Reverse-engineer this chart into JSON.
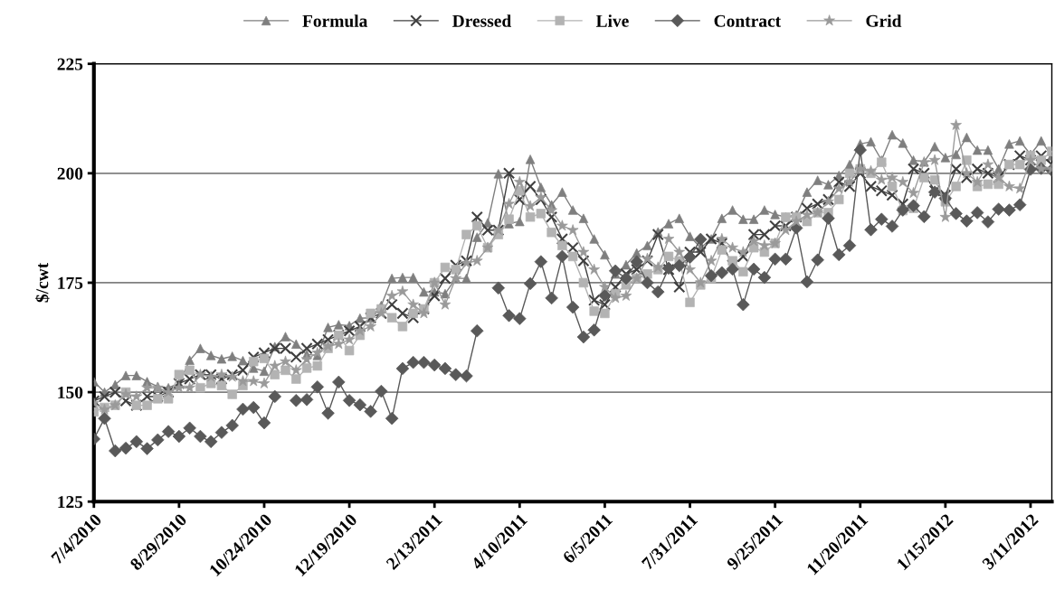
{
  "chart_data": {
    "type": "line",
    "ylabel": "$/cwt",
    "x": [
      "2010-07-04",
      "2010-07-11",
      "2010-07-18",
      "2010-07-25",
      "2010-08-01",
      "2010-08-08",
      "2010-08-15",
      "2010-08-22",
      "2010-08-29",
      "2010-09-05",
      "2010-09-12",
      "2010-09-19",
      "2010-09-26",
      "2010-10-03",
      "2010-10-10",
      "2010-10-17",
      "2010-10-24",
      "2010-10-31",
      "2010-11-07",
      "2010-11-14",
      "2010-11-21",
      "2010-11-28",
      "2010-12-05",
      "2010-12-12",
      "2010-12-19",
      "2010-12-26",
      "2011-01-02",
      "2011-01-09",
      "2011-01-16",
      "2011-01-23",
      "2011-01-30",
      "2011-02-06",
      "2011-02-13",
      "2011-02-20",
      "2011-02-27",
      "2011-03-06",
      "2011-03-13",
      "2011-03-20",
      "2011-03-27",
      "2011-04-03",
      "2011-04-10",
      "2011-04-17",
      "2011-04-24",
      "2011-05-01",
      "2011-05-08",
      "2011-05-15",
      "2011-05-22",
      "2011-05-29",
      "2011-06-05",
      "2011-06-12",
      "2011-06-19",
      "2011-06-26",
      "2011-07-03",
      "2011-07-10",
      "2011-07-17",
      "2011-07-24",
      "2011-07-31",
      "2011-08-07",
      "2011-08-14",
      "2011-08-21",
      "2011-08-28",
      "2011-09-04",
      "2011-09-11",
      "2011-09-18",
      "2011-09-25",
      "2011-10-02",
      "2011-10-09",
      "2011-10-16",
      "2011-10-23",
      "2011-10-30",
      "2011-11-06",
      "2011-11-13",
      "2011-11-20",
      "2011-11-27",
      "2011-12-04",
      "2011-12-11",
      "2011-12-18",
      "2011-12-25",
      "2012-01-01",
      "2012-01-08",
      "2012-01-15",
      "2012-01-22",
      "2012-01-29",
      "2012-02-05",
      "2012-02-12",
      "2012-02-19",
      "2012-02-26",
      "2012-03-04",
      "2012-03-11",
      "2012-03-18",
      "2012-03-25"
    ],
    "series": [
      {
        "name": "Formula",
        "color": "#7f7f7f",
        "marker": "triangle",
        "values": [
          152.4,
          150,
          151.7,
          153.8,
          153.8,
          152.4,
          151.3,
          151,
          152,
          157.3,
          160,
          158.4,
          157.6,
          158.2,
          157.2,
          155.5,
          154.8,
          160.4,
          162.7,
          161,
          158.6,
          158.4,
          164.8,
          165.4,
          165.2,
          166.9,
          167,
          169.8,
          176,
          176.2,
          176.2,
          172.9,
          172.9,
          172.5,
          176,
          176,
          185.4,
          188.7,
          199.9,
          188.5,
          189,
          203.2,
          196.8,
          192.8,
          195.7,
          191.6,
          189.7,
          185,
          181.4,
          177,
          179.1,
          181.8,
          183.5,
          186.6,
          188.5,
          189.7,
          185.6,
          183,
          185,
          189.7,
          191.6,
          189.5,
          189.5,
          191.6,
          190.6,
          190,
          190.5,
          195.7,
          198.4,
          197.4,
          199.5,
          202,
          206.7,
          207.2,
          203,
          208.8,
          206.9,
          203,
          202.6,
          206.1,
          203.6,
          204.3,
          208.2,
          205.3,
          205.3,
          201,
          206.7,
          207.4,
          204.3,
          207.4,
          204
        ]
      },
      {
        "name": "Dressed",
        "color": "#404040",
        "marker": "cross",
        "values": [
          148,
          149,
          150,
          148,
          147,
          149,
          149,
          150,
          152,
          153,
          154,
          154,
          153,
          154,
          155,
          158,
          159,
          160,
          160,
          158,
          160,
          161,
          162,
          163,
          164,
          165,
          167,
          168,
          170,
          168,
          167,
          169,
          172,
          176,
          179,
          180,
          190,
          187,
          187,
          200,
          194,
          197,
          194,
          190,
          185,
          183,
          180,
          171,
          170,
          174,
          177,
          178,
          180,
          186,
          178,
          174,
          182,
          182,
          185,
          184,
          179,
          181,
          186,
          186,
          188,
          188,
          190,
          192,
          193,
          194,
          198,
          197,
          200,
          197,
          196,
          195,
          193,
          201,
          200,
          196,
          195,
          201,
          199,
          201,
          200,
          199,
          202,
          204,
          203,
          204,
          202
        ]
      },
      {
        "name": "Live",
        "color": "#b3b3b3",
        "marker": "square",
        "values": [
          145.5,
          146.5,
          147,
          150,
          147,
          147,
          148.5,
          148.5,
          154,
          155,
          151,
          152,
          151.5,
          149.5,
          151.5,
          157,
          157.7,
          154,
          155,
          153,
          155.5,
          156,
          160,
          163,
          159.5,
          163,
          168,
          169,
          167,
          165,
          168,
          169,
          175,
          178.5,
          178,
          186,
          188,
          183,
          186,
          189.5,
          196,
          190,
          190.8,
          186.5,
          183.5,
          181,
          175,
          168.5,
          168,
          172.5,
          174.5,
          176,
          177,
          178,
          181,
          180,
          170.5,
          174.5,
          176,
          182.5,
          180,
          177.5,
          183,
          182,
          184,
          190,
          190,
          189,
          191,
          191,
          194,
          200,
          201,
          200,
          202.5,
          197,
          191.5,
          192,
          199,
          198.5,
          193.5,
          197,
          203,
          197,
          197.5,
          197.5,
          202,
          202,
          204,
          203,
          205
        ]
      },
      {
        "name": "Contract",
        "color": "#595959",
        "marker": "diamond",
        "values": [
          139.3,
          144,
          136.6,
          137.2,
          138.7,
          137.1,
          139.1,
          141,
          139.9,
          141.8,
          139.9,
          138.7,
          140.8,
          142.4,
          146.1,
          146.5,
          143,
          149,
          null,
          148.1,
          148.3,
          151.2,
          145.2,
          152.3,
          148.1,
          147.1,
          145.6,
          150.2,
          144,
          155.4,
          156.8,
          156.8,
          156.2,
          155.4,
          154,
          153.7,
          164,
          null,
          173.8,
          167.5,
          166.8,
          174.8,
          179.8,
          171.5,
          181,
          169.4,
          162.6,
          164.2,
          172.1,
          177.7,
          176,
          179.8,
          175,
          172.9,
          178.3,
          178.9,
          180.8,
          184.9,
          176.6,
          177.3,
          178.1,
          170,
          178.1,
          176.2,
          180.4,
          180.4,
          187.5,
          175.2,
          180.2,
          189.7,
          181.4,
          183.5,
          205.3,
          187.1,
          189.5,
          187.9,
          191.6,
          192.6,
          190.1,
          195.7,
          194.3,
          190.8,
          189.1,
          191,
          188.9,
          191.8,
          191.6,
          192.8,
          200.9,
          201.1,
          200.7
        ]
      },
      {
        "name": "Grid",
        "color": "#9a9a9a",
        "marker": "star",
        "values": [
          147.5,
          146,
          147,
          149.5,
          149,
          151,
          151,
          150,
          151,
          151,
          154,
          153.5,
          154,
          153.5,
          152.5,
          152.5,
          152,
          156,
          157,
          155,
          157.5,
          159,
          160.5,
          161,
          162,
          164,
          165,
          168,
          172,
          173,
          170,
          168,
          175,
          170,
          176,
          179.5,
          180,
          183,
          187,
          193,
          198,
          192.5,
          194.5,
          191.5,
          188,
          187,
          182,
          178,
          174,
          171.5,
          172,
          176,
          180.5,
          178.5,
          185,
          182,
          178,
          175,
          180,
          185,
          183,
          182,
          184.5,
          183.5,
          184,
          187,
          189,
          190.5,
          191,
          193.5,
          196.5,
          198,
          201,
          200.5,
          198.5,
          199,
          198,
          195.5,
          202.5,
          203,
          190,
          211,
          200,
          198,
          202,
          199,
          197,
          196.5,
          203,
          201,
          201
        ]
      }
    ],
    "xlim": [
      "2010-07-04",
      "2012-03-25"
    ],
    "xticks": [
      {
        "value": "2010-07-04",
        "label": "7/4/2010"
      },
      {
        "value": "2010-08-29",
        "label": "8/29/2010"
      },
      {
        "value": "2010-10-24",
        "label": "10/24/2010"
      },
      {
        "value": "2010-12-19",
        "label": "12/19/2010"
      },
      {
        "value": "2011-02-13",
        "label": "2/13/2011"
      },
      {
        "value": "2011-04-10",
        "label": "4/10/2011"
      },
      {
        "value": "2011-06-05",
        "label": "6/5/2011"
      },
      {
        "value": "2011-07-31",
        "label": "7/31/2011"
      },
      {
        "value": "2011-09-25",
        "label": "9/25/2011"
      },
      {
        "value": "2011-11-20",
        "label": "11/20/2011"
      },
      {
        "value": "2012-01-15",
        "label": "1/15/2012"
      },
      {
        "value": "2012-03-11",
        "label": "3/11/2012"
      }
    ],
    "ylim": [
      125,
      225
    ],
    "yticks": [
      125,
      150,
      175,
      200,
      225
    ],
    "grid": "y",
    "legend": "top",
    "line_style": "solid"
  }
}
